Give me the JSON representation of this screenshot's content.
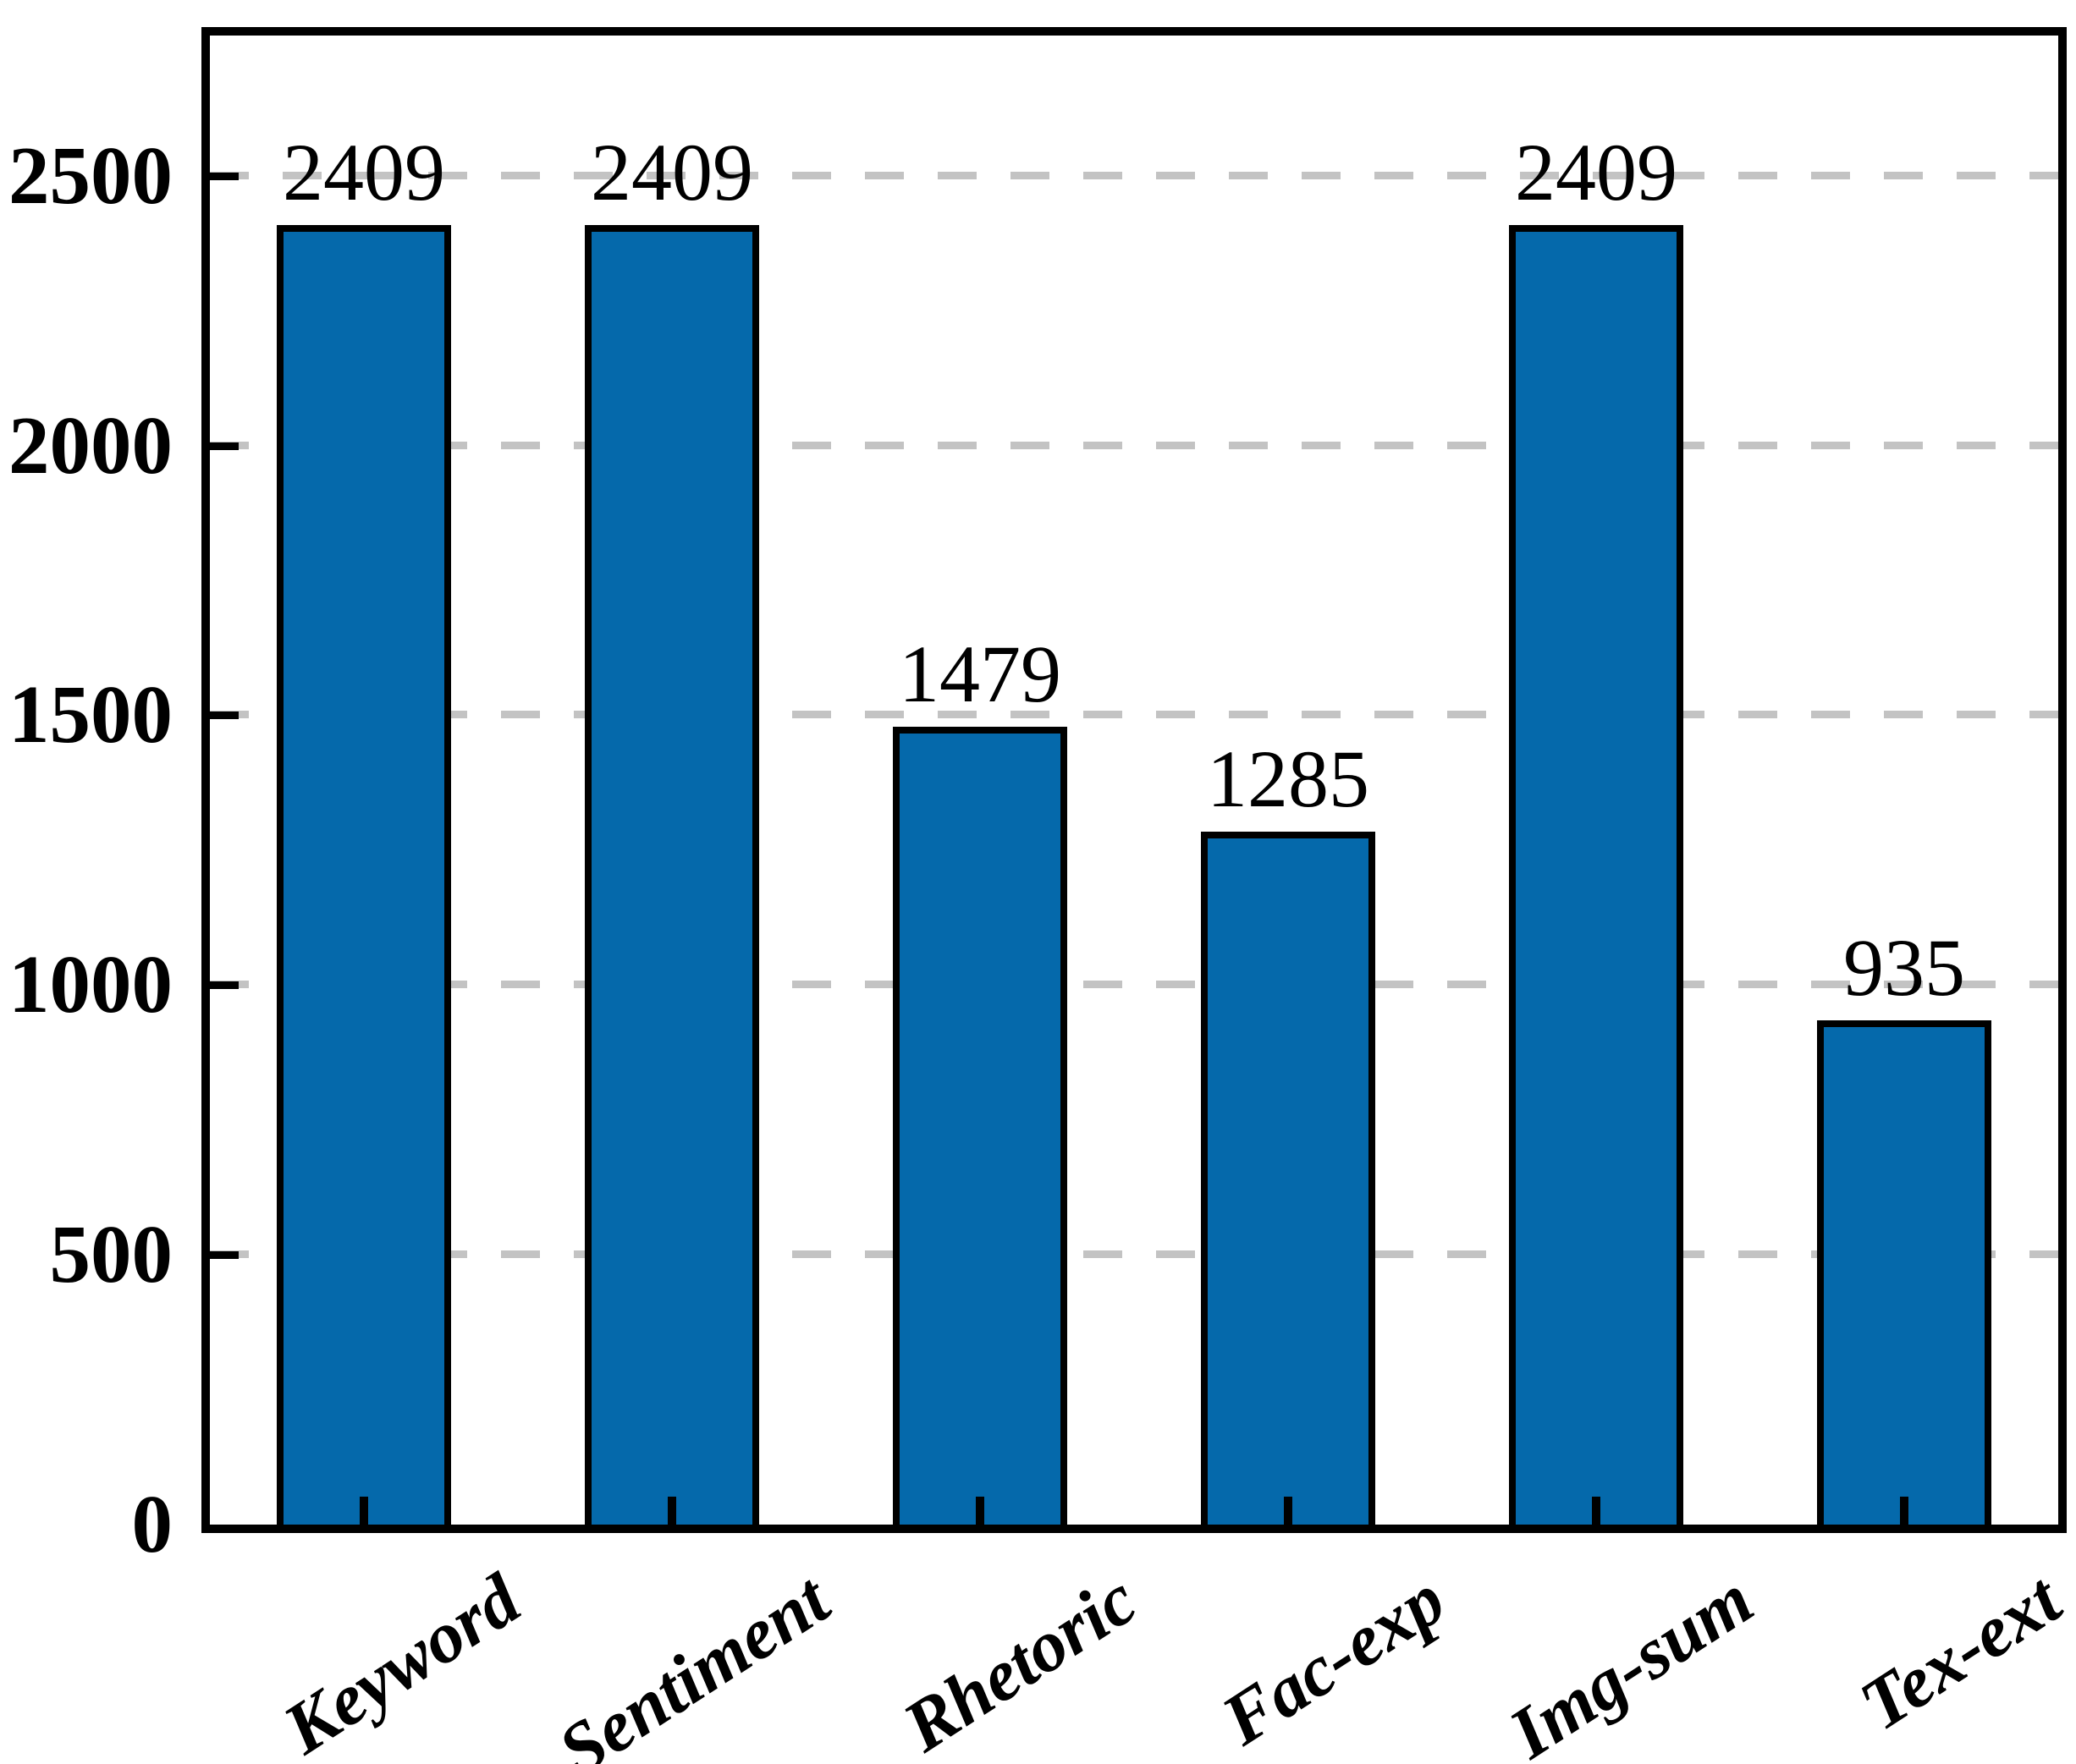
{
  "chart_data": {
    "type": "bar",
    "categories": [
      "Keyword",
      "Sentiment",
      "Rhetoric",
      "Fac-exp",
      "Img-sum",
      "Tex-ext"
    ],
    "values": [
      2409,
      2409,
      1479,
      1285,
      2409,
      935
    ],
    "bar_value_labels": [
      "2409",
      "2409",
      "1479",
      "1285",
      "2409",
      "935"
    ],
    "title": "",
    "xlabel": "",
    "ylabel": "",
    "ylim": [
      0,
      2760
    ],
    "yticks": [
      0,
      500,
      1000,
      1500,
      2000,
      2500
    ],
    "ytick_labels": [
      "0",
      "500",
      "1000",
      "1500",
      "2000",
      "2500"
    ],
    "grid": "horizontal dashed at yticks",
    "legend_position": "none",
    "xtick_label_rotation_deg": 33,
    "colors": {
      "bar_fill": "#0569ab",
      "bar_edge": "#000000",
      "grid": "#c3c3c3",
      "axis": "#000000",
      "text": "#000000",
      "background": "#ffffff"
    }
  }
}
